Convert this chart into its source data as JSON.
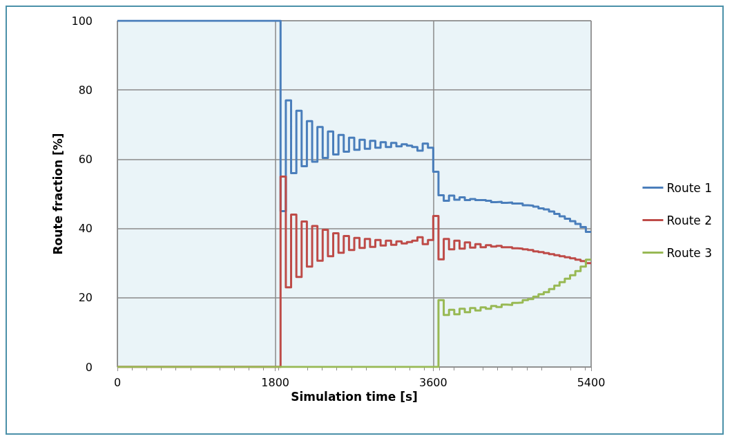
{
  "chart_data": {
    "type": "step",
    "xlabel": "Simulation time [s]",
    "ylabel": "Route fraction [%]",
    "xlim": [
      0,
      5400
    ],
    "xticks": [
      0,
      1800,
      3600,
      5400
    ],
    "ylim": [
      0,
      100
    ],
    "yticks": [
      0,
      20,
      40,
      60,
      80,
      100
    ],
    "grid": true,
    "legend": "right",
    "marker": "none",
    "line_style": "solid",
    "x": [
      0,
      1860,
      1920,
      1980,
      2040,
      2100,
      2160,
      2220,
      2280,
      2340,
      2400,
      2460,
      2520,
      2580,
      2640,
      2700,
      2760,
      2820,
      2880,
      2940,
      3000,
      3060,
      3120,
      3180,
      3240,
      3300,
      3360,
      3420,
      3480,
      3540,
      3600,
      3660,
      3720,
      3780,
      3840,
      3900,
      3960,
      4020,
      4080,
      4140,
      4200,
      4260,
      4320,
      4380,
      4440,
      4500,
      4560,
      4620,
      4680,
      4740,
      4800,
      4860,
      4920,
      4980,
      5040,
      5100,
      5160,
      5220,
      5280,
      5340,
      5400
    ],
    "series": [
      {
        "name": "Route 1",
        "color": "#4a7ebb",
        "values": [
          100,
          45,
          77,
          56,
          74,
          58,
          71,
          59.3,
          69.3,
          60.4,
          68,
          61.4,
          67,
          62.2,
          66.2,
          62.7,
          65.6,
          63,
          65.3,
          63.3,
          64.9,
          63.5,
          64.7,
          63.7,
          64.3,
          63.9,
          63.5,
          62.5,
          64.5,
          63.3,
          56.4,
          49.6,
          48,
          49.5,
          48.3,
          49,
          48.2,
          48.5,
          48.2,
          48.2,
          48,
          47.6,
          47.7,
          47.4,
          47.5,
          47.2,
          47.2,
          46.7,
          46.6,
          46.3,
          45.8,
          45.5,
          44.9,
          44.2,
          43.5,
          42.8,
          42.1,
          41.3,
          40.4,
          39,
          39
        ]
      },
      {
        "name": "Route 2",
        "color": "#be4b48",
        "values": [
          0,
          55,
          23,
          44,
          26,
          42,
          29,
          40.7,
          30.7,
          39.6,
          32,
          38.6,
          33,
          37.8,
          33.8,
          37.3,
          34.4,
          37,
          34.7,
          36.7,
          35.1,
          36.5,
          35.3,
          36.3,
          35.7,
          36.1,
          36.5,
          37.5,
          35.5,
          36.7,
          43.6,
          31.1,
          37,
          34,
          36.5,
          34.2,
          36,
          34.5,
          35.5,
          34.6,
          35.2,
          34.8,
          35,
          34.6,
          34.6,
          34.3,
          34.2,
          34,
          33.8,
          33.4,
          33.2,
          32.9,
          32.6,
          32.3,
          32,
          31.7,
          31.4,
          31,
          30.6,
          30,
          30
        ]
      },
      {
        "name": "Route 3",
        "color": "#98b954",
        "values": [
          0,
          0,
          0,
          0,
          0,
          0,
          0,
          0,
          0,
          0,
          0,
          0,
          0,
          0,
          0,
          0,
          0,
          0,
          0,
          0,
          0,
          0,
          0,
          0,
          0,
          0,
          0,
          0,
          0,
          0,
          0,
          19.3,
          15,
          16.5,
          15.2,
          16.8,
          15.8,
          17,
          16.3,
          17.2,
          16.8,
          17.6,
          17.3,
          18,
          17.9,
          18.5,
          18.6,
          19.3,
          19.6,
          20.3,
          21,
          21.6,
          22.5,
          23.5,
          24.5,
          25.5,
          26.5,
          27.7,
          29,
          31,
          31
        ]
      }
    ]
  }
}
